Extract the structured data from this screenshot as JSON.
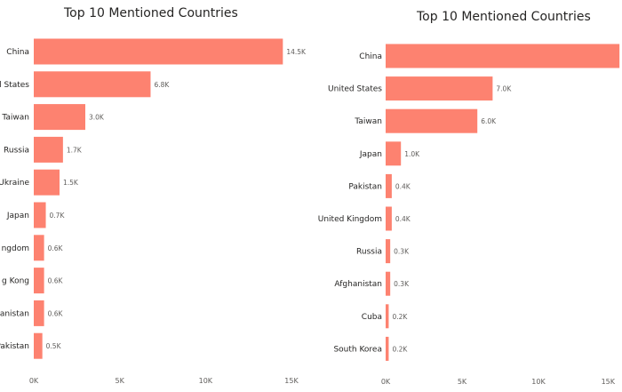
{
  "colors": {
    "bar": "#FD8270"
  },
  "chart_data": [
    {
      "type": "bar",
      "orientation": "horizontal",
      "title": "Top 10 Mentioned Countries",
      "categories": [
        "China",
        "d States",
        "Taiwan",
        "Russia",
        "Ukraine",
        "Japan",
        "ngdom",
        "g Kong",
        "anistan",
        "Pakistan"
      ],
      "values": [
        14.5,
        6.8,
        3.0,
        1.7,
        1.5,
        0.7,
        0.6,
        0.6,
        0.6,
        0.5
      ],
      "value_labels": [
        "14.5K",
        "6.8K",
        "3.0K",
        "1.7K",
        "1.5K",
        "0.7K",
        "0.6K",
        "0.6K",
        "0.6K",
        "0.5K"
      ],
      "xlim": [
        0,
        15
      ],
      "x_ticks": [
        0,
        5,
        10,
        15
      ],
      "x_tick_labels": [
        "0K",
        "5K",
        "10K",
        "15K"
      ],
      "grid": false
    },
    {
      "type": "bar",
      "orientation": "horizontal",
      "title": "Top 10 Mentioned Countries",
      "categories": [
        "China",
        "United States",
        "Taiwan",
        "Japan",
        "Pakistan",
        "United Kingdom",
        "Russia",
        "Afghanistan",
        "Cuba",
        "South Korea"
      ],
      "values": [
        15.3,
        7.0,
        6.0,
        1.0,
        0.4,
        0.4,
        0.3,
        0.3,
        0.2,
        0.2
      ],
      "value_labels": [
        "",
        "7.0K",
        "6.0K",
        "1.0K",
        "0.4K",
        "0.4K",
        "0.3K",
        "0.3K",
        "0.2K",
        "0.2K"
      ],
      "xlim": [
        0,
        15
      ],
      "x_ticks": [
        0,
        5,
        10,
        15
      ],
      "x_tick_labels": [
        "0K",
        "5K",
        "10K",
        "15K"
      ],
      "grid": false
    }
  ]
}
